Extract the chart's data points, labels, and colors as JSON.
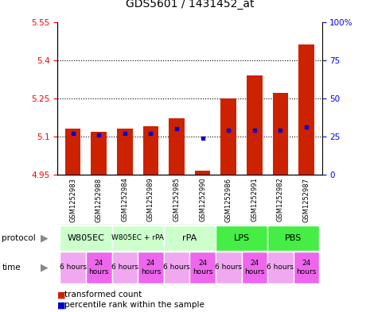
{
  "title": "GDS5601 / 1431452_at",
  "samples": [
    "GSM1252983",
    "GSM1252988",
    "GSM1252984",
    "GSM1252989",
    "GSM1252985",
    "GSM1252990",
    "GSM1252986",
    "GSM1252991",
    "GSM1252982",
    "GSM1252987"
  ],
  "transformed_counts": [
    5.13,
    5.12,
    5.13,
    5.14,
    5.17,
    4.965,
    5.25,
    5.34,
    5.27,
    5.46
  ],
  "percentile_ranks": [
    27,
    26,
    27,
    27,
    30,
    24,
    29,
    29,
    29,
    31
  ],
  "baseline": 4.95,
  "ylim_left": [
    4.95,
    5.55
  ],
  "ylim_right": [
    0,
    100
  ],
  "yticks_left": [
    4.95,
    5.1,
    5.25,
    5.4,
    5.55
  ],
  "yticks_right": [
    0,
    25,
    50,
    75,
    100
  ],
  "ytick_labels_left": [
    "4.95",
    "5.1",
    "5.25",
    "5.4",
    "5.55"
  ],
  "ytick_labels_right": [
    "0",
    "25",
    "50",
    "75",
    "100%"
  ],
  "protocols": [
    {
      "label": "W805EC",
      "span": [
        0,
        2
      ],
      "color": "#ccffcc"
    },
    {
      "label": "W805EC + rPA",
      "span": [
        2,
        4
      ],
      "color": "#ccffcc"
    },
    {
      "label": "rPA",
      "span": [
        4,
        6
      ],
      "color": "#ccffcc"
    },
    {
      "label": "LPS",
      "span": [
        6,
        8
      ],
      "color": "#66dd66"
    },
    {
      "label": "PBS",
      "span": [
        8,
        10
      ],
      "color": "#55dd55"
    }
  ],
  "times": [
    "6 hours",
    "24\nhours",
    "6 hours",
    "24\nhours",
    "6 hours",
    "24\nhours",
    "6 hours",
    "24\nhours",
    "6 hours",
    "24\nhours"
  ],
  "time_colors": [
    "#f0a8f0",
    "#ee66ee",
    "#f0a8f0",
    "#ee66ee",
    "#f0a8f0",
    "#ee66ee",
    "#f0a8f0",
    "#ee66ee",
    "#f0a8f0",
    "#ee66ee"
  ],
  "bar_color": "#cc2200",
  "dot_color": "#0000cc",
  "sample_bg": "#d8d8d8",
  "plot_bg": "#ffffff",
  "legend_red": "transformed count",
  "legend_blue": "percentile rank within the sample",
  "bar_width": 0.6
}
